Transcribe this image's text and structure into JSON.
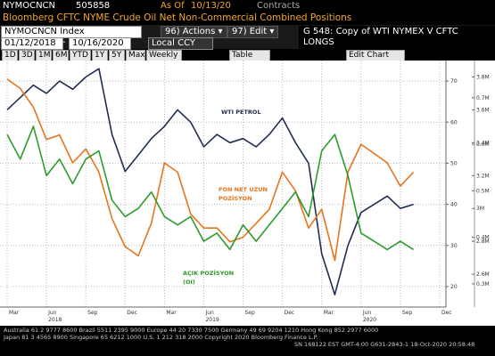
{
  "header": {
    "ticker": "NYMOCNCN",
    "value": "505858",
    "as_of_label": "As Of",
    "as_of": "10/13/20",
    "unit": "Contracts",
    "description": "Bloomberg CFTC NYME Crude Oil Net Non-Commercial Combined Positions"
  },
  "toolbar": {
    "security": "NYMOCNCN Index",
    "actions": "96) Actions ▾",
    "edit": "97) Edit ▾",
    "chart_name": "G 548: Copy of WTI NYMEX V CFTC LONGS",
    "start_date": "01/12/2018",
    "date_sep": "-",
    "end_date": "10/16/2020",
    "currency": "Local CCY",
    "buttons": [
      "1D",
      "3D",
      "1M",
      "6M",
      "YTD",
      "1Y",
      "5Y",
      "Max",
      "Weekly ▾"
    ],
    "table": "Table",
    "edit_chart": "Edit Chart"
  },
  "chart_data": {
    "type": "line",
    "categories": [
      "Mar",
      null,
      null,
      "Jun",
      null,
      null,
      "Sep",
      null,
      null,
      "Dec",
      null,
      null,
      "Mar",
      null,
      null,
      "Jun",
      null,
      null,
      "Sep",
      null,
      null,
      "Dec",
      null,
      null,
      "Mar",
      null,
      null,
      "Jun",
      null,
      null,
      "Sep",
      null,
      null,
      "Dec"
    ],
    "year_labels": [
      "2018",
      "2019",
      "2020"
    ],
    "annotations": [
      [
        "WTI PETROL"
      ],
      [
        "FON NET UZUN",
        "POZİSYON"
      ],
      [
        "AÇIK POZİSYON",
        "(OI)"
      ]
    ],
    "series": [
      {
        "name": "WTI PETROL",
        "color": "#1f2d50",
        "axis": "y",
        "values": [
          63,
          66,
          69,
          67,
          70,
          68,
          71,
          73,
          57,
          48,
          52,
          56,
          59,
          63,
          60,
          54,
          57,
          55,
          56,
          54,
          57,
          61,
          55,
          50,
          28,
          18,
          30,
          38,
          40,
          42,
          39,
          40,
          null,
          null
        ]
      },
      {
        "name": "FON NET UZUN POZİSYON",
        "color": "#e8741c",
        "axis": "y2",
        "values": [
          740000,
          720000,
          680000,
          610000,
          620000,
          560000,
          590000,
          540000,
          440000,
          380000,
          360000,
          430000,
          560000,
          540000,
          450000,
          420000,
          420000,
          390000,
          400000,
          430000,
          460000,
          540000,
          500000,
          420000,
          460000,
          350000,
          540000,
          600000,
          580000,
          560000,
          510000,
          540000,
          null,
          null
        ]
      },
      {
        "name": "AÇIK POZİSYON (OI)",
        "color": "#2e9b2e",
        "axis": "y3",
        "values": [
          3450000,
          3300000,
          3500000,
          3200000,
          3300000,
          3150000,
          3300000,
          3350000,
          3050000,
          2950000,
          3000000,
          3100000,
          2950000,
          2900000,
          2950000,
          2800000,
          2850000,
          2750000,
          2900000,
          2800000,
          2900000,
          3000000,
          3100000,
          2950000,
          3350000,
          3450000,
          3200000,
          2850000,
          2800000,
          2750000,
          2800000,
          2750000,
          null,
          null
        ]
      }
    ],
    "ylim": [
      15,
      75
    ],
    "yticks": [
      20,
      30,
      40,
      50,
      60,
      70
    ],
    "y2lim": [
      250000,
      780000
    ],
    "y2ticks": [
      {
        "value": 300000,
        "label": "0.3M"
      },
      {
        "value": 400000,
        "label": "0.4M"
      },
      {
        "value": 500000,
        "label": "0.5M"
      },
      {
        "value": 600000,
        "label": "0.6M"
      },
      {
        "value": 700000,
        "label": "0.7M"
      }
    ],
    "y3lim": [
      2400000,
      3900000
    ],
    "y3ticks": [
      {
        "value": 2600000,
        "label": "2.6M"
      },
      {
        "value": 2800000,
        "label": "2.8M"
      },
      {
        "value": 3000000,
        "label": "3M"
      },
      {
        "value": 3200000,
        "label": "3.2M"
      },
      {
        "value": 3400000,
        "label": "3.4M"
      },
      {
        "value": 3600000,
        "label": "3.6M"
      },
      {
        "value": 3800000,
        "label": "3.8M"
      }
    ],
    "grid": true
  },
  "footer": [
    "Australia 61 2 9777 8600 Brazil 5511 2395 9000 Europe 44 20 7330 7500 Germany 49 69 9204 1210 Hong Kong 852 2977 6000",
    "Japan 81 3 4565 8900   Singapore 65 6212 1000   U.S. 1 212 318 2000   Copyright 2020 Bloomberg Finance L.P.",
    "SN 168122 EST  GMT-4:00 G631-2843-1 18-Oct-2020 20:58:48"
  ]
}
